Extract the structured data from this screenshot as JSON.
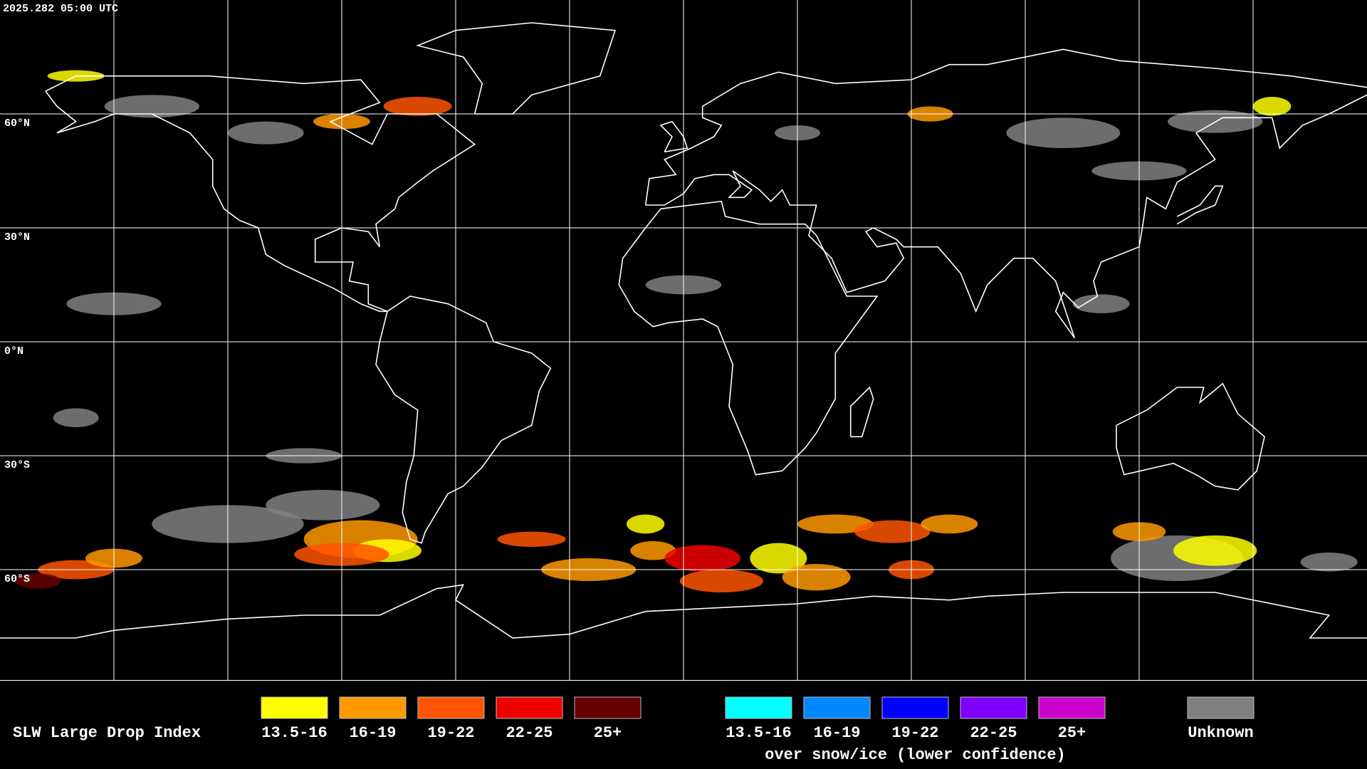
{
  "header": {
    "timestamp": "2025.282 05:00 UTC"
  },
  "map": {
    "latitude_labels": [
      "60°N",
      "30°N",
      "0°N",
      "30°S",
      "60°S"
    ]
  },
  "legend": {
    "title": "SLW Large Drop Index",
    "groups": [
      {
        "items": [
          {
            "label": "13.5-16",
            "color": "#ffff00"
          },
          {
            "label": "16-19",
            "color": "#ff9900"
          },
          {
            "label": "19-22",
            "color": "#ff5500"
          },
          {
            "label": "22-25",
            "color": "#ee0000"
          },
          {
            "label": "25+",
            "color": "#660000"
          }
        ]
      },
      {
        "items": [
          {
            "label": "13.5-16",
            "color": "#00ffff"
          },
          {
            "label": "16-19",
            "color": "#0088ff"
          },
          {
            "label": "19-22",
            "color": "#0000ff"
          },
          {
            "label": "22-25",
            "color": "#7f00ff"
          },
          {
            "label": "25+",
            "color": "#cc00cc"
          }
        ],
        "caption": "over snow/ice (lower confidence)"
      },
      {
        "items": [
          {
            "label": "Unknown",
            "color": "#808080"
          }
        ]
      }
    ]
  }
}
